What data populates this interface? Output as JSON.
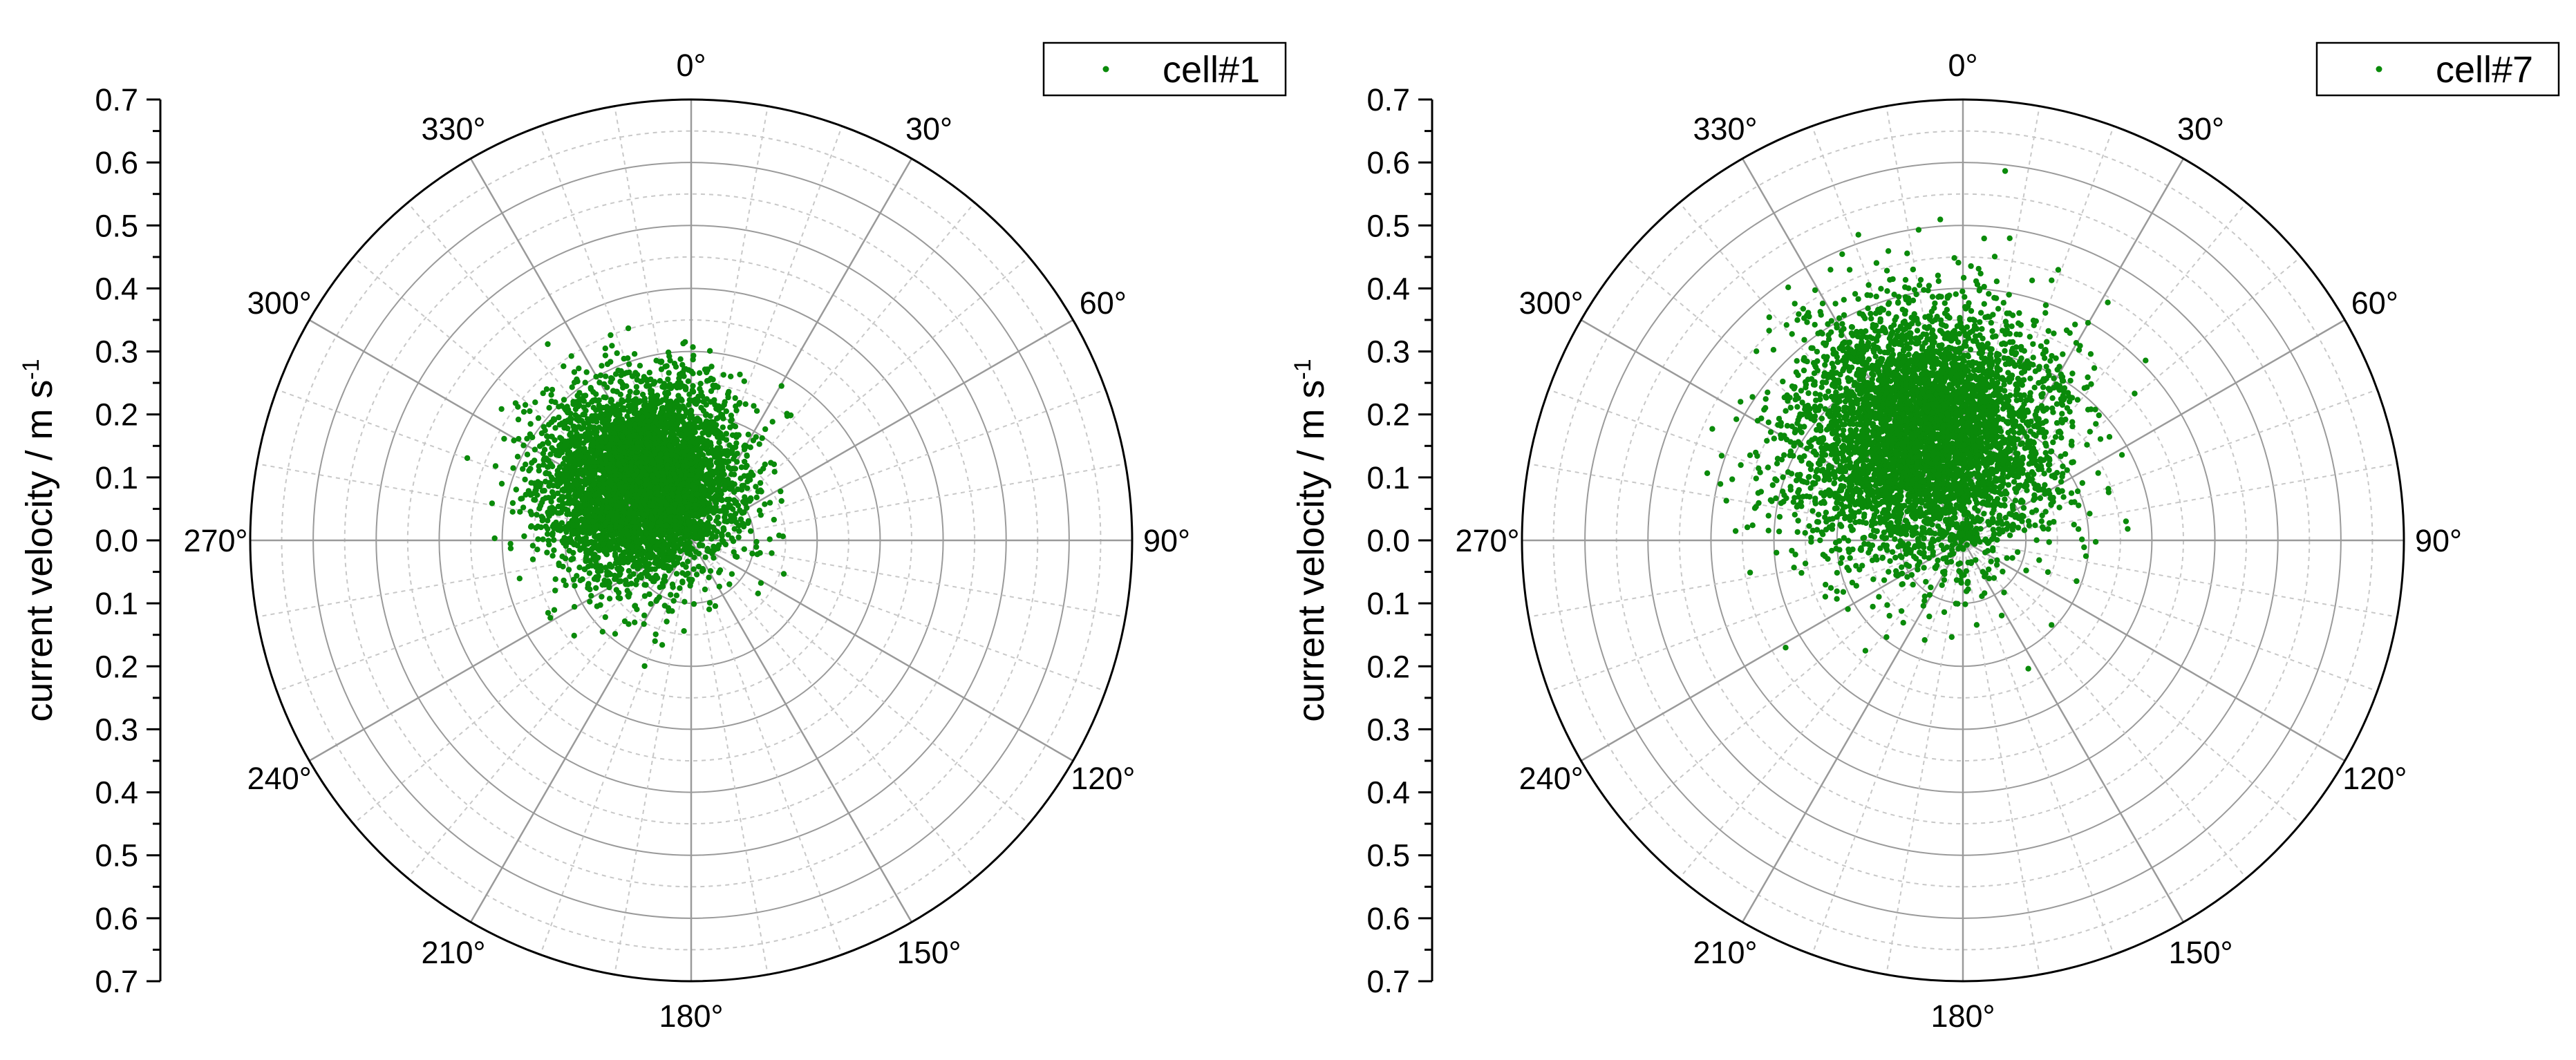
{
  "colors": {
    "points": "#0a8a0a",
    "axis": "#000000",
    "major_grid": "#9a9a9a",
    "minor_grid": "#c8c8c8",
    "background": "#ffffff"
  },
  "chart_data": [
    {
      "type": "scatter",
      "coordinate_system": "polar",
      "title": "",
      "series": [
        {
          "name": "cell#1",
          "marker": "dot",
          "color": "#0a8a0a",
          "cluster": {
            "center_direction_deg": 320,
            "center_speed": 0.12,
            "spread_sd": 0.075,
            "approx_points": 5000
          }
        }
      ],
      "legend": {
        "labels": [
          "cell#1"
        ],
        "position": "top-right"
      },
      "radial_axis": {
        "label": "current velocity / m s",
        "label_superscript": "-1",
        "range": [
          0,
          0.7
        ],
        "major_step": 0.1,
        "minor_step": 0.05,
        "tick_labels_upper": [
          "0.7",
          "0.6",
          "0.5",
          "0.4",
          "0.3",
          "0.2",
          "0.1",
          "0.0"
        ],
        "tick_labels_lower": [
          "0.1",
          "0.2",
          "0.3",
          "0.4",
          "0.5",
          "0.6",
          "0.7"
        ]
      },
      "angular_axis": {
        "labels": [
          "0°",
          "30°",
          "60°",
          "90°",
          "120°",
          "150°",
          "180°",
          "210°",
          "240°",
          "270°",
          "300°",
          "330°"
        ],
        "direction": "clockwise",
        "zero_at": "top"
      },
      "grid": true
    },
    {
      "type": "scatter",
      "coordinate_system": "polar",
      "title": "",
      "series": [
        {
          "name": "cell#7",
          "marker": "dot",
          "color": "#0a8a0a",
          "cluster": {
            "center_direction_deg": 340,
            "center_speed": 0.18,
            "spread_sd": 0.1,
            "approx_points": 5000
          }
        }
      ],
      "legend": {
        "labels": [
          "cell#7"
        ],
        "position": "top-right"
      },
      "radial_axis": {
        "label": "current velocity / m s",
        "label_superscript": "-1",
        "range": [
          0,
          0.7
        ],
        "major_step": 0.1,
        "minor_step": 0.05,
        "tick_labels_upper": [
          "0.7",
          "0.6",
          "0.5",
          "0.4",
          "0.3",
          "0.2",
          "0.1",
          "0.0"
        ],
        "tick_labels_lower": [
          "0.1",
          "0.2",
          "0.3",
          "0.4",
          "0.5",
          "0.6",
          "0.7"
        ]
      },
      "angular_axis": {
        "labels": [
          "0°",
          "30°",
          "60°",
          "90°",
          "120°",
          "150°",
          "180°",
          "210°",
          "240°",
          "270°",
          "300°",
          "330°"
        ],
        "direction": "clockwise",
        "zero_at": "top"
      },
      "grid": true
    }
  ]
}
